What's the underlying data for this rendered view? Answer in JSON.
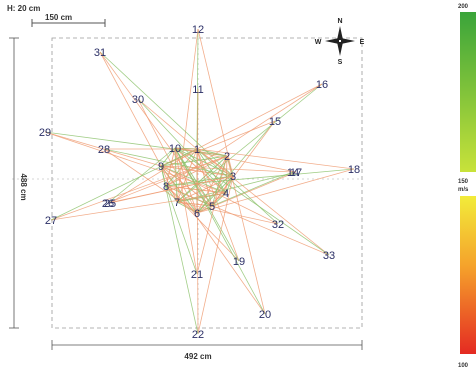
{
  "header": {
    "height_label": "H: 20 cm",
    "scale_label": "150 cm"
  },
  "dimensions": {
    "width_label": "492 cm",
    "height_label": "488 cm"
  },
  "compass": {
    "n": "N",
    "s": "S",
    "e": "E",
    "w": "W"
  },
  "color_scale": {
    "top_label": "200",
    "mid_label": "150",
    "mid_unit": "m/s",
    "bottom_label": "100",
    "colors": [
      "#3aa43a",
      "#9fcf3a",
      "#e8ec3a",
      "#f7c52e",
      "#ef7a25",
      "#e42a22"
    ]
  },
  "edge_colors": {
    "green": "#8cc26b",
    "orange": "#ef9a70"
  },
  "nodes": [
    {
      "id": "1",
      "label": "1"
    },
    {
      "id": "2",
      "label": "2"
    },
    {
      "id": "3",
      "label": "3"
    },
    {
      "id": "4",
      "label": "4"
    },
    {
      "id": "5",
      "label": "5"
    },
    {
      "id": "6",
      "label": "6"
    },
    {
      "id": "7",
      "label": "7"
    },
    {
      "id": "8",
      "label": "8"
    },
    {
      "id": "9",
      "label": "9"
    },
    {
      "id": "10",
      "label": "10"
    },
    {
      "id": "11",
      "label": "11"
    },
    {
      "id": "12",
      "label": "12"
    },
    {
      "id": "14",
      "label": "14"
    },
    {
      "id": "15",
      "label": "15"
    },
    {
      "id": "16",
      "label": "16"
    },
    {
      "id": "17",
      "label": "17"
    },
    {
      "id": "18",
      "label": "18"
    },
    {
      "id": "19",
      "label": "19"
    },
    {
      "id": "20",
      "label": "20"
    },
    {
      "id": "21",
      "label": "21"
    },
    {
      "id": "22",
      "label": "22"
    },
    {
      "id": "25",
      "label": "25"
    },
    {
      "id": "26",
      "label": "26"
    },
    {
      "id": "27",
      "label": "27"
    },
    {
      "id": "28",
      "label": "28"
    },
    {
      "id": "29",
      "label": "29"
    },
    {
      "id": "30",
      "label": "30"
    },
    {
      "id": "31",
      "label": "31"
    },
    {
      "id": "32",
      "label": "32"
    },
    {
      "id": "33",
      "label": "33"
    }
  ],
  "edges": [
    [
      "12",
      "1"
    ],
    [
      "12",
      "3"
    ],
    [
      "12",
      "7"
    ],
    [
      "11",
      "1"
    ],
    [
      "11",
      "6"
    ],
    [
      "31",
      "9"
    ],
    [
      "31",
      "3"
    ],
    [
      "31",
      "5"
    ],
    [
      "30",
      "1"
    ],
    [
      "30",
      "4"
    ],
    [
      "30",
      "6"
    ],
    [
      "29",
      "9"
    ],
    [
      "29",
      "2"
    ],
    [
      "29",
      "4"
    ],
    [
      "28",
      "1"
    ],
    [
      "28",
      "3"
    ],
    [
      "28",
      "6"
    ],
    [
      "16",
      "1"
    ],
    [
      "16",
      "7"
    ],
    [
      "16",
      "8"
    ],
    [
      "15",
      "9"
    ],
    [
      "15",
      "6"
    ],
    [
      "15",
      "5"
    ],
    [
      "18",
      "1"
    ],
    [
      "18",
      "8"
    ],
    [
      "18",
      "6"
    ],
    [
      "17",
      "10"
    ],
    [
      "17",
      "7"
    ],
    [
      "17",
      "6"
    ],
    [
      "14",
      "9"
    ],
    [
      "14",
      "5"
    ],
    [
      "33",
      "1"
    ],
    [
      "33",
      "8"
    ],
    [
      "33",
      "10"
    ],
    [
      "32",
      "9"
    ],
    [
      "32",
      "7"
    ],
    [
      "32",
      "1"
    ],
    [
      "19",
      "1"
    ],
    [
      "19",
      "8"
    ],
    [
      "19",
      "10"
    ],
    [
      "20",
      "2"
    ],
    [
      "20",
      "9"
    ],
    [
      "20",
      "10"
    ],
    [
      "22",
      "1"
    ],
    [
      "22",
      "3"
    ],
    [
      "22",
      "9"
    ],
    [
      "21",
      "2"
    ],
    [
      "21",
      "10"
    ],
    [
      "21",
      "8"
    ],
    [
      "27",
      "2"
    ],
    [
      "27",
      "4"
    ],
    [
      "27",
      "1"
    ],
    [
      "26",
      "2"
    ],
    [
      "26",
      "3"
    ],
    [
      "26",
      "10"
    ],
    [
      "25",
      "3"
    ],
    [
      "25",
      "1"
    ]
  ]
}
